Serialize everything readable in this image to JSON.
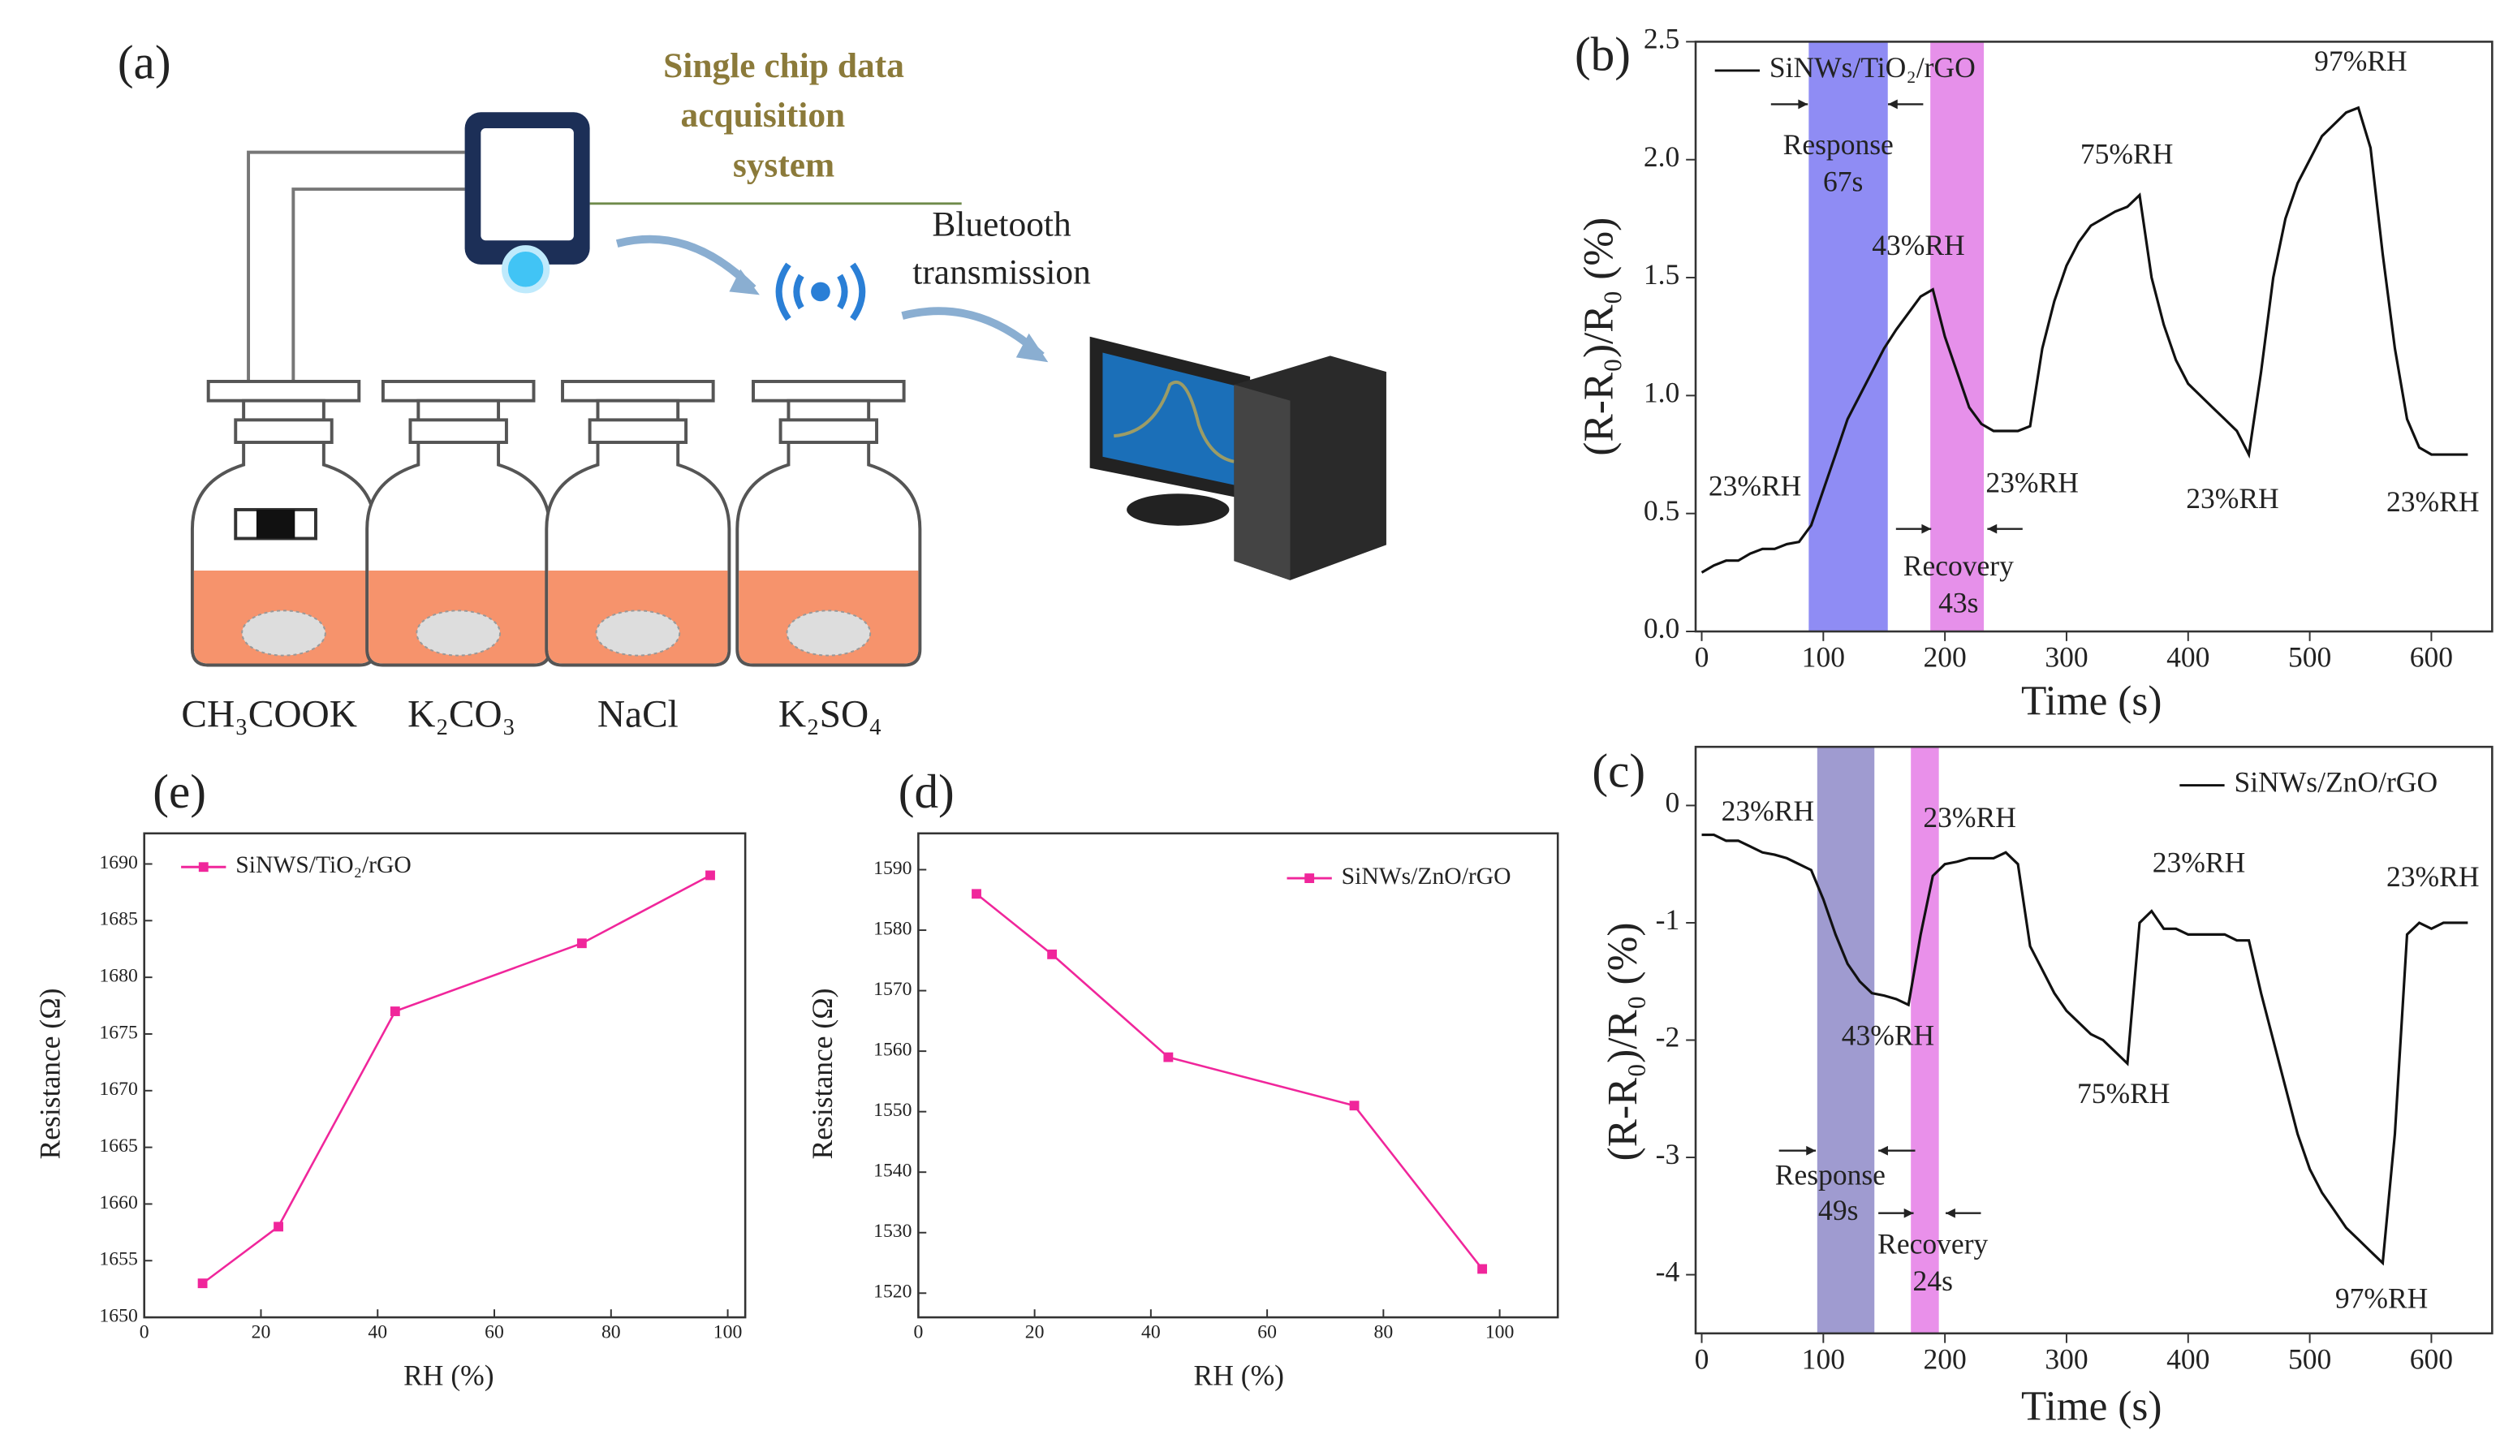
{
  "diagram": {
    "panel": "(a)",
    "system_label": [
      "Single chip data",
      "acquisition",
      "system"
    ],
    "transmission_label": [
      "Bluetooth",
      "transmission"
    ],
    "solutions": [
      "CH₃COOK",
      "K₂CO₃",
      "NaCl",
      "K₂SO₄"
    ]
  },
  "chart_data": [
    {
      "panel": "(b)",
      "type": "line",
      "x": [
        0,
        10,
        20,
        30,
        40,
        50,
        60,
        70,
        80,
        90,
        100,
        110,
        120,
        130,
        140,
        150,
        160,
        170,
        180,
        190,
        200,
        210,
        220,
        230,
        240,
        250,
        260,
        270,
        280,
        290,
        300,
        310,
        320,
        330,
        340,
        350,
        360,
        370,
        380,
        390,
        400,
        410,
        420,
        430,
        440,
        450,
        460,
        470,
        480,
        490,
        500,
        510,
        520,
        530,
        540,
        550,
        560,
        570,
        580,
        590,
        600,
        610,
        620,
        630
      ],
      "series": [
        {
          "name": "SiNWs/TiO₂/rGO",
          "color": "#111111",
          "values": [
            0.25,
            0.28,
            0.3,
            0.3,
            0.33,
            0.35,
            0.35,
            0.37,
            0.38,
            0.45,
            0.6,
            0.75,
            0.9,
            1.0,
            1.1,
            1.2,
            1.28,
            1.35,
            1.42,
            1.45,
            1.25,
            1.1,
            0.95,
            0.88,
            0.85,
            0.85,
            0.85,
            0.87,
            1.2,
            1.4,
            1.55,
            1.65,
            1.72,
            1.75,
            1.78,
            1.8,
            1.85,
            1.5,
            1.3,
            1.15,
            1.05,
            1.0,
            0.95,
            0.9,
            0.85,
            0.75,
            1.1,
            1.5,
            1.75,
            1.9,
            2.0,
            2.1,
            2.15,
            2.2,
            2.22,
            2.05,
            1.6,
            1.2,
            0.9,
            0.78,
            0.75,
            0.75,
            0.75,
            0.75
          ]
        }
      ],
      "xlim": [
        -5,
        650
      ],
      "ylim": [
        0,
        2.5
      ],
      "xticks": [
        0,
        100,
        200,
        300,
        400,
        500,
        600
      ],
      "yticks": [
        {
          "value": 0,
          "label": "0.0"
        },
        0.5,
        {
          "value": 1,
          "label": "1.0"
        },
        1.5,
        {
          "value": 2,
          "label": "2.0"
        },
        2.5
      ],
      "xlabel": "Time (s)",
      "ylabel": "(R-R₀)/R₀ (%)",
      "bands": [
        {
          "start": 88,
          "end": 153,
          "color": "#7b78f2"
        },
        {
          "start": 188,
          "end": 232,
          "color": "#e27ce6"
        }
      ],
      "annotations": [
        "23%RH",
        "Response",
        "67s",
        "43%RH",
        "75%RH",
        "97%RH",
        "23%RH",
        "Recovery",
        "43s",
        "23%RH",
        "23%RH"
      ]
    },
    {
      "panel": "(c)",
      "type": "line",
      "x": [
        0,
        10,
        20,
        30,
        40,
        50,
        60,
        70,
        80,
        90,
        100,
        110,
        120,
        130,
        140,
        150,
        160,
        170,
        180,
        190,
        200,
        210,
        220,
        230,
        240,
        250,
        260,
        270,
        280,
        290,
        300,
        310,
        320,
        330,
        340,
        350,
        360,
        370,
        380,
        390,
        400,
        410,
        420,
        430,
        440,
        450,
        460,
        470,
        480,
        490,
        500,
        510,
        520,
        530,
        540,
        550,
        560,
        570,
        580,
        590,
        600,
        610,
        620,
        630
      ],
      "series": [
        {
          "name": "SiNWs/ZnO/rGO",
          "color": "#111111",
          "values": [
            -0.25,
            -0.25,
            -0.3,
            -0.3,
            -0.35,
            -0.4,
            -0.42,
            -0.45,
            -0.5,
            -0.55,
            -0.8,
            -1.1,
            -1.35,
            -1.5,
            -1.6,
            -1.62,
            -1.65,
            -1.7,
            -1.1,
            -0.6,
            -0.5,
            -0.48,
            -0.45,
            -0.45,
            -0.45,
            -0.4,
            -0.5,
            -1.2,
            -1.4,
            -1.6,
            -1.75,
            -1.85,
            -1.95,
            -2.0,
            -2.1,
            -2.2,
            -1.0,
            -0.9,
            -1.05,
            -1.05,
            -1.1,
            -1.1,
            -1.1,
            -1.1,
            -1.15,
            -1.15,
            -1.6,
            -2.0,
            -2.4,
            -2.8,
            -3.1,
            -3.3,
            -3.45,
            -3.6,
            -3.7,
            -3.8,
            -3.9,
            -2.8,
            -1.1,
            -1.0,
            -1.05,
            -1.0,
            -1.0,
            -1.0
          ]
        }
      ],
      "xlim": [
        -5,
        650
      ],
      "ylim": [
        -4.5,
        0.5
      ],
      "xticks": [
        0,
        100,
        200,
        300,
        400,
        500,
        600
      ],
      "yticks": [
        0,
        -1,
        -2,
        -3,
        -4
      ],
      "xlabel": "Time (s)",
      "ylabel": "(R-R₀)/R₀ (%)",
      "bands": [
        {
          "start": 95,
          "end": 142,
          "color": "#8e89c8"
        },
        {
          "start": 172,
          "end": 195,
          "color": "#e57de6"
        }
      ],
      "annotations": [
        "23%RH",
        "23%RH",
        "43%RH",
        "23%RH",
        "75%RH",
        "23%RH",
        "Response",
        "49s",
        "Recovery",
        "24s",
        "97%RH"
      ]
    },
    {
      "panel": "(e)",
      "type": "line",
      "markers": true,
      "x": [
        10,
        23,
        43,
        75,
        97
      ],
      "series": [
        {
          "name": "SiNWS/TiO₂/rGO",
          "color": "#f0269b",
          "values": [
            1653,
            1658,
            1677,
            1683,
            1689
          ]
        }
      ],
      "xlim": [
        0,
        103
      ],
      "ylim": [
        1650,
        1692.7
      ],
      "xticks": [
        0,
        20,
        40,
        60,
        80,
        100
      ],
      "yticks": [
        1650,
        1655,
        1660,
        1665,
        1670,
        1675,
        1680,
        1685,
        1690
      ],
      "xlabel": "RH (%)",
      "ylabel": "Resistance (Ω)",
      "bands": [],
      "annotations": []
    },
    {
      "panel": "(d)",
      "type": "line",
      "markers": true,
      "x": [
        10,
        23,
        43,
        75,
        97
      ],
      "series": [
        {
          "name": "SiNWs/ZnO/rGO",
          "color": "#f0269b",
          "values": [
            1586,
            1576,
            1559,
            1551,
            1524
          ]
        }
      ],
      "xlim": [
        0,
        110
      ],
      "ylim": [
        1516,
        1596
      ],
      "xticks": [
        0,
        20,
        40,
        60,
        80,
        100
      ],
      "yticks": [
        1520,
        1530,
        1540,
        1550,
        1560,
        1570,
        1580,
        1590
      ],
      "xlabel": "RH (%)",
      "ylabel": "Resistance (Ω)",
      "bands": [],
      "annotations": []
    }
  ]
}
